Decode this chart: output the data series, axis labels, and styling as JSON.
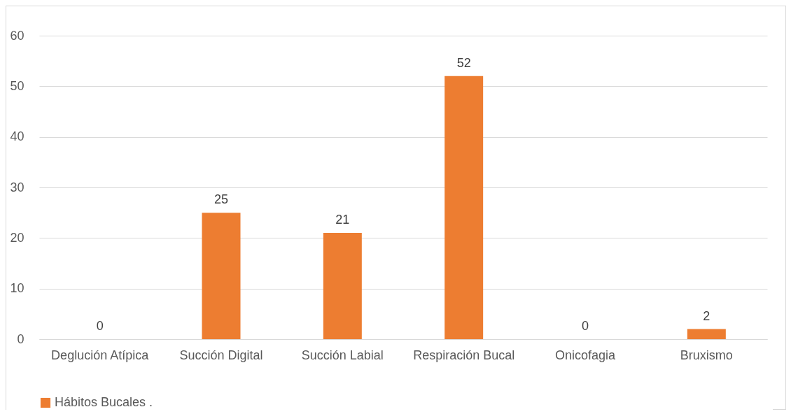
{
  "chart_data": {
    "type": "bar",
    "categories": [
      "Deglución Atípica",
      "Succión Digital",
      "Succión Labial",
      "Respiración Bucal",
      "Onicofagia",
      "Bruxismo"
    ],
    "series": [
      {
        "name": "Hábitos Bucales .",
        "color": "#ed7d31",
        "values": [
          0,
          25,
          21,
          52,
          0,
          2
        ]
      }
    ],
    "ylim": [
      0,
      60
    ],
    "yticks": [
      0,
      10,
      20,
      30,
      40,
      50,
      60
    ],
    "grid": "y",
    "legend": "bottom",
    "data_labels": true
  }
}
